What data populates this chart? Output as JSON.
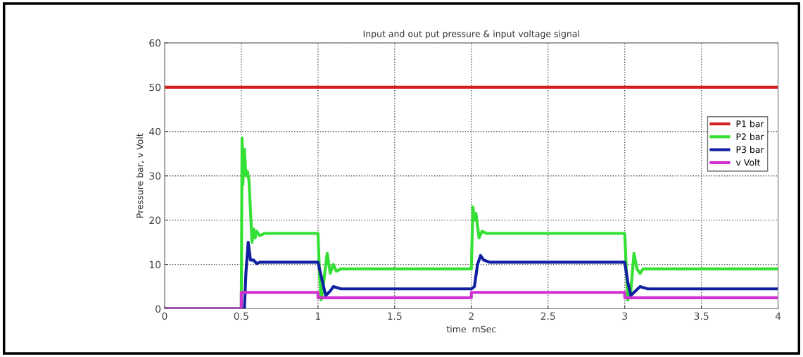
{
  "chart_data": {
    "type": "line",
    "title": "Input and out put pressure & input voltage signal",
    "xlabel": "time  mSec",
    "ylabel": "Pressure bar, v Volt",
    "xlim": [
      0,
      4
    ],
    "xticks": [
      0,
      0.5,
      1,
      1.5,
      2,
      2.5,
      3,
      3.5,
      4
    ],
    "ylim": [
      0,
      60
    ],
    "yticks": [
      0,
      10,
      20,
      30,
      40,
      50,
      60
    ],
    "grid": true,
    "legend": "right",
    "line_style": "solid",
    "marker": "none",
    "series": [
      {
        "name": "P1 bar",
        "color": "#d42020",
        "x": [
          0,
          4
        ],
        "values": [
          50,
          50
        ]
      },
      {
        "name": "P2 bar",
        "color": "#33e033",
        "x": [
          0,
          0.5,
          0.505,
          0.51,
          0.52,
          0.53,
          0.54,
          0.55,
          0.56,
          0.57,
          0.58,
          0.59,
          0.6,
          0.62,
          0.65,
          1.0,
          1.01,
          1.02,
          1.03,
          1.06,
          1.08,
          1.1,
          1.12,
          1.15,
          2.0,
          2.01,
          2.02,
          2.03,
          2.05,
          2.07,
          2.1,
          3.0,
          3.01,
          3.02,
          3.04,
          3.06,
          3.08,
          3.1,
          3.12,
          4.0
        ],
        "values": [
          0,
          0,
          38.5,
          28,
          36,
          30,
          31,
          29,
          22,
          15,
          18,
          16,
          17.5,
          16.5,
          17,
          17,
          8,
          2,
          4,
          12.5,
          8,
          10,
          8.5,
          9,
          9,
          23,
          20,
          21.5,
          16,
          17.5,
          17,
          17,
          9,
          2,
          4,
          12.5,
          9,
          8,
          9,
          9
        ]
      },
      {
        "name": "P3 bar",
        "color": "#1020a0",
        "x": [
          0,
          0.52,
          0.53,
          0.545,
          0.56,
          0.58,
          0.6,
          0.62,
          1.0,
          1.03,
          1.05,
          1.08,
          1.1,
          1.15,
          2.0,
          2.02,
          2.04,
          2.06,
          2.08,
          2.12,
          3.0,
          3.02,
          3.04,
          3.07,
          3.1,
          3.15,
          4.0
        ],
        "values": [
          0,
          0,
          8,
          15,
          11,
          11,
          10.2,
          10.5,
          10.5,
          6,
          3,
          4,
          5,
          4.5,
          4.5,
          5,
          10,
          12,
          11,
          10.5,
          10.5,
          6,
          3,
          4,
          5,
          4.5,
          4.5
        ]
      },
      {
        "name": "v Volt",
        "color": "#d030d0",
        "x": [
          0,
          0.5,
          0.5,
          1.0,
          1.0,
          2.0,
          2.0,
          3.0,
          3.0,
          4.0
        ],
        "values": [
          0,
          0,
          3.7,
          3.7,
          2.5,
          2.5,
          3.7,
          3.7,
          2.5,
          2.5
        ]
      }
    ]
  }
}
